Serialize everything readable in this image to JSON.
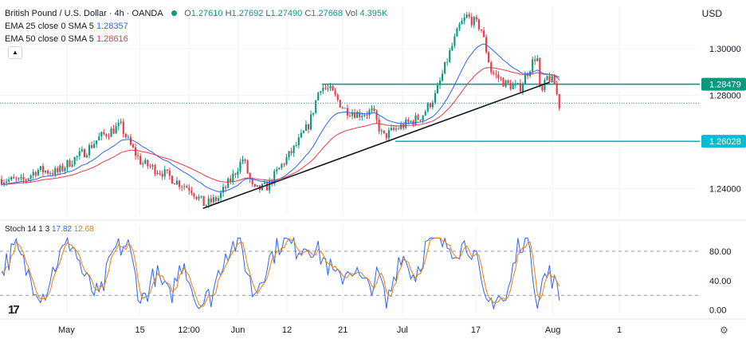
{
  "header": {
    "symbol": "British Pound / U.S. Dollar · 4h · OANDA",
    "o_label": "O",
    "o_val": "1.27610",
    "h_label": "H",
    "h_val": "1.27692",
    "l_label": "L",
    "l_val": "1.27490",
    "c_label": "C",
    "c_val": "1.27668",
    "vol_label": "Vol",
    "vol_val": "4.395K",
    "currency": "USD"
  },
  "indicators": {
    "ema1_label": "EMA 25 close 0 SMA 5",
    "ema1_val": "1.28357",
    "ema1_color": "#2962ff",
    "ema2_label": "EMA 50 close 0 SMA 5",
    "ema2_val": "1.28616",
    "ema2_color": "#f23645",
    "stoch_label": "Stoch 14 1 3",
    "stoch_k": "17.82",
    "stoch_d": "12.68",
    "stoch_k_color": "#2962ff",
    "stoch_d_color": "#f57c00"
  },
  "icons": {
    "collapse": "chevron-up-icon",
    "logo": "tradingview-logo-icon",
    "settings": "gear-icon"
  },
  "logo_text": "17",
  "chart_data": {
    "type": "candlestick",
    "price_axis": {
      "ticks": [
        "1.30000",
        "1.28000",
        "1.24000"
      ],
      "tick_values": [
        1.3,
        1.28,
        1.24
      ],
      "range": [
        1.2285,
        1.3182
      ]
    },
    "level_labels": [
      {
        "text": "1.28479",
        "value": 1.28479,
        "color": "#089981"
      },
      {
        "text": "1.26028",
        "value": 1.26028,
        "color": "#00bcd4"
      }
    ],
    "horizontal_levels": [
      {
        "value": 1.28479,
        "from_x": 0.46,
        "color": "#089981"
      },
      {
        "value": 1.26028,
        "from_x": 0.565,
        "color": "#00bcd4"
      },
      {
        "value": 1.2767,
        "from_x": 0.0,
        "color": "#089981",
        "dotted": true
      }
    ],
    "trendline": {
      "from": [
        0.29,
        1.2315
      ],
      "to": [
        0.785,
        1.2856
      ]
    },
    "x_axis": {
      "labels": [
        "May",
        "15",
        "12:00",
        "Jun",
        "12",
        "21",
        "Jul",
        "17",
        "Aug",
        "1"
      ],
      "positions": [
        0.095,
        0.2,
        0.27,
        0.34,
        0.41,
        0.49,
        0.575,
        0.68,
        0.79,
        0.885
      ]
    },
    "anchors": [
      [
        0.0,
        1.244
      ],
      [
        0.03,
        1.243
      ],
      [
        0.05,
        1.248
      ],
      [
        0.08,
        1.247
      ],
      [
        0.1,
        1.252
      ],
      [
        0.12,
        1.256
      ],
      [
        0.14,
        1.262
      ],
      [
        0.17,
        1.267
      ],
      [
        0.185,
        1.258
      ],
      [
        0.2,
        1.251
      ],
      [
        0.23,
        1.247
      ],
      [
        0.25,
        1.243
      ],
      [
        0.27,
        1.24
      ],
      [
        0.29,
        1.233
      ],
      [
        0.31,
        1.236
      ],
      [
        0.33,
        1.245
      ],
      [
        0.345,
        1.253
      ],
      [
        0.36,
        1.239
      ],
      [
        0.38,
        1.241
      ],
      [
        0.4,
        1.25
      ],
      [
        0.42,
        1.258
      ],
      [
        0.44,
        1.268
      ],
      [
        0.455,
        1.284
      ],
      [
        0.47,
        1.282
      ],
      [
        0.49,
        1.274
      ],
      [
        0.51,
        1.272
      ],
      [
        0.53,
        1.273
      ],
      [
        0.545,
        1.262
      ],
      [
        0.56,
        1.265
      ],
      [
        0.58,
        1.268
      ],
      [
        0.6,
        1.271
      ],
      [
        0.62,
        1.28
      ],
      [
        0.64,
        1.298
      ],
      [
        0.655,
        1.31
      ],
      [
        0.665,
        1.314
      ],
      [
        0.685,
        1.309
      ],
      [
        0.7,
        1.29
      ],
      [
        0.72,
        1.285
      ],
      [
        0.74,
        1.283
      ],
      [
        0.755,
        1.292
      ],
      [
        0.765,
        1.298
      ],
      [
        0.77,
        1.279
      ],
      [
        0.78,
        1.288
      ],
      [
        0.79,
        1.285
      ],
      [
        0.797,
        1.2758
      ]
    ],
    "ema_series": [
      {
        "name": "EMA 25 close 0 SMA 5",
        "smoothing": 0.09,
        "color": "#2962ff"
      },
      {
        "name": "EMA 50 close 0 SMA 5",
        "smoothing": 0.045,
        "color": "#f23645"
      }
    ],
    "stoch_axis": {
      "ticks": [
        "80.00",
        "40.00",
        "0.00"
      ],
      "tick_values": [
        80,
        40,
        0
      ],
      "dashed_levels": [
        80,
        20
      ],
      "range": [
        -8,
        105
      ]
    },
    "stoch_anchors": [
      [
        0.0,
        55
      ],
      [
        0.02,
        85
      ],
      [
        0.04,
        45
      ],
      [
        0.06,
        20
      ],
      [
        0.08,
        70
      ],
      [
        0.1,
        95
      ],
      [
        0.12,
        40
      ],
      [
        0.14,
        15
      ],
      [
        0.16,
        80
      ],
      [
        0.18,
        90
      ],
      [
        0.2,
        10
      ],
      [
        0.22,
        50
      ],
      [
        0.24,
        15
      ],
      [
        0.26,
        70
      ],
      [
        0.28,
        5
      ],
      [
        0.3,
        20
      ],
      [
        0.32,
        80
      ],
      [
        0.34,
        95
      ],
      [
        0.36,
        20
      ],
      [
        0.38,
        65
      ],
      [
        0.4,
        95
      ],
      [
        0.42,
        85
      ],
      [
        0.44,
        90
      ],
      [
        0.46,
        70
      ],
      [
        0.48,
        40
      ],
      [
        0.5,
        60
      ],
      [
        0.52,
        30
      ],
      [
        0.54,
        45
      ],
      [
        0.55,
        5
      ],
      [
        0.57,
        80
      ],
      [
        0.59,
        45
      ],
      [
        0.61,
        95
      ],
      [
        0.63,
        90
      ],
      [
        0.65,
        85
      ],
      [
        0.67,
        90
      ],
      [
        0.68,
        60
      ],
      [
        0.69,
        5
      ],
      [
        0.71,
        20
      ],
      [
        0.72,
        8
      ],
      [
        0.74,
        95
      ],
      [
        0.755,
        95
      ],
      [
        0.765,
        5
      ],
      [
        0.775,
        45
      ],
      [
        0.785,
        50
      ],
      [
        0.797,
        15
      ]
    ]
  }
}
